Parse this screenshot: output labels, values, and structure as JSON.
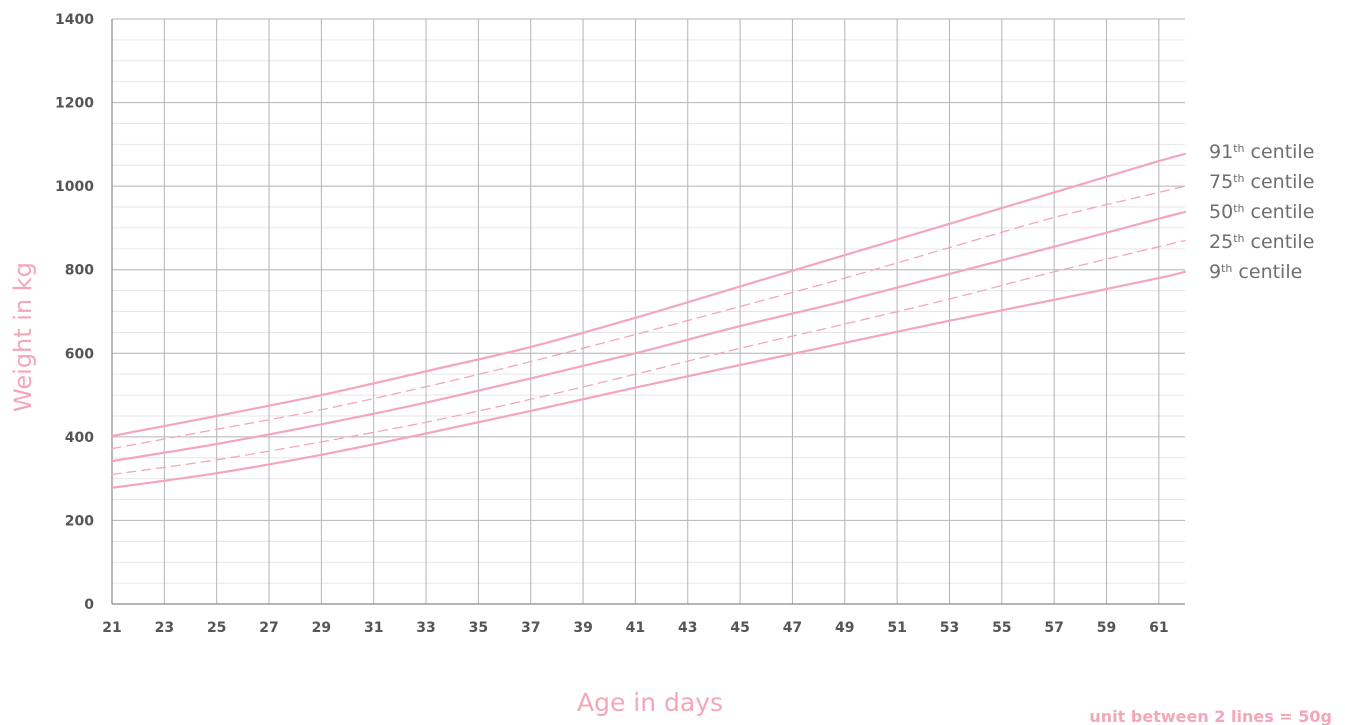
{
  "chart_data": {
    "type": "line",
    "title": "",
    "xlabel": "Age in days",
    "ylabel": "Weight in kg",
    "xlim": [
      21,
      62
    ],
    "ylim": [
      0,
      1400
    ],
    "x_ticks": [
      "21",
      "23",
      "25",
      "27",
      "29",
      "31",
      "33",
      "35",
      "37",
      "39",
      "41",
      "43",
      "45",
      "47",
      "49",
      "51",
      "53",
      "55",
      "57",
      "59",
      "61"
    ],
    "y_ticks": [
      "0",
      "200",
      "400",
      "600",
      "800",
      "1000",
      "1200",
      "1400"
    ],
    "grid": true,
    "legend_position": "right",
    "note": "unit between 2 lines = 50g",
    "line_color": "#f4a7b9",
    "x": [
      21,
      25,
      29,
      33,
      37,
      41,
      45,
      49,
      53,
      57,
      61,
      62
    ],
    "series": [
      {
        "name": "91",
        "suffix": "th",
        "label_rest": " centile",
        "style": "solid",
        "values": [
          402,
          450,
          500,
          557,
          615,
          685,
          760,
          835,
          910,
          985,
          1060,
          1077
        ]
      },
      {
        "name": "75",
        "suffix": "th",
        "label_rest": " centile",
        "style": "dashed",
        "values": [
          372,
          418,
          465,
          520,
          580,
          645,
          712,
          780,
          853,
          925,
          985,
          1000
        ]
      },
      {
        "name": "50",
        "suffix": "th",
        "label_rest": " centile",
        "style": "solid",
        "values": [
          342,
          383,
          430,
          482,
          540,
          600,
          665,
          725,
          790,
          855,
          922,
          938
        ]
      },
      {
        "name": "25",
        "suffix": "th",
        "label_rest": " centile",
        "style": "dashed",
        "values": [
          310,
          345,
          388,
          435,
          490,
          550,
          612,
          670,
          730,
          795,
          855,
          870
        ]
      },
      {
        "name": "9",
        "suffix": "th",
        "label_rest": " centile",
        "style": "solid",
        "values": [
          278,
          313,
          357,
          408,
          462,
          518,
          572,
          625,
          678,
          728,
          780,
          795
        ]
      }
    ]
  }
}
